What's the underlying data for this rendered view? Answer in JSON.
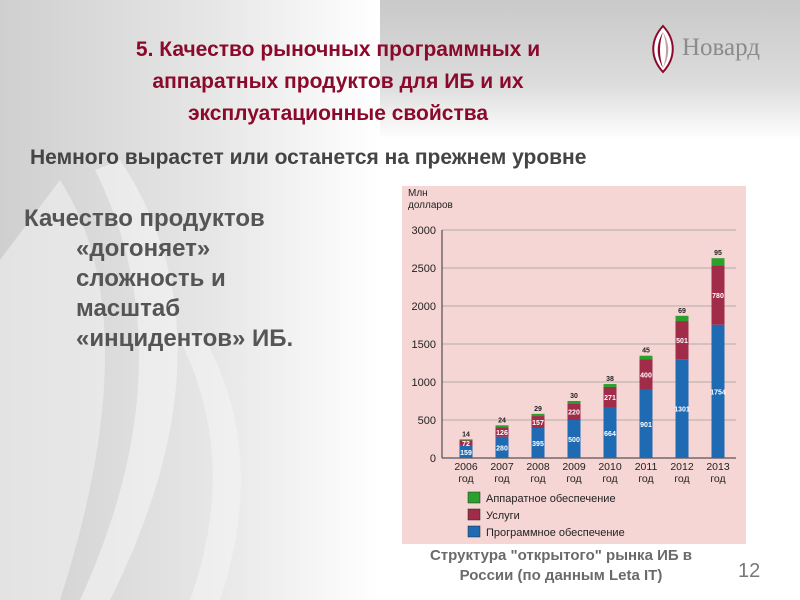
{
  "header": {
    "title_lines": [
      "5. Качество рыночных программных и",
      "аппаратных продуктов для ИБ и их",
      "эксплуатационные свойства"
    ]
  },
  "logo": {
    "text": "Новард",
    "color": "#8b0a2c"
  },
  "subtitle": "Немного вырастет или останется на прежнем уровне",
  "body_lines": [
    "Качество продуктов",
    "«догоняет»",
    "сложность и",
    "масштаб",
    "«инцидентов» ИБ."
  ],
  "caption_lines": [
    "Структура \"открытого\" рынка ИБ в",
    "России (по данным Leta IT)"
  ],
  "page_number": "12",
  "chart_data": {
    "type": "bar",
    "stacked": true,
    "ylabel": "Млн\nдолларов",
    "ylim": [
      0,
      3000
    ],
    "yticks": [
      0,
      500,
      1000,
      1500,
      2000,
      2500,
      3000
    ],
    "categories": [
      "2006\nгод",
      "2007\nгод",
      "2008\nгод",
      "2009\nгод",
      "2010\nгод",
      "2011\nгод",
      "2012\nгод",
      "2013\nгод"
    ],
    "series": [
      {
        "name": "Программное обеспечение",
        "color": "#1f6bb3",
        "values": [
          159,
          280,
          395,
          500,
          664,
          901,
          1301,
          1754
        ]
      },
      {
        "name": "Услуги",
        "color": "#a02c4a",
        "values": [
          72,
          126,
          157,
          220,
          271,
          400,
          501,
          780
        ]
      },
      {
        "name": "Аппаратное обеспечение",
        "color": "#2ca02c",
        "values": [
          14,
          24,
          29,
          30,
          38,
          45,
          69,
          95
        ]
      }
    ],
    "legend_order": [
      "Аппаратное обеспечение",
      "Услуги",
      "Программное обеспечение"
    ],
    "legend_position": "bottom",
    "grid": true
  }
}
